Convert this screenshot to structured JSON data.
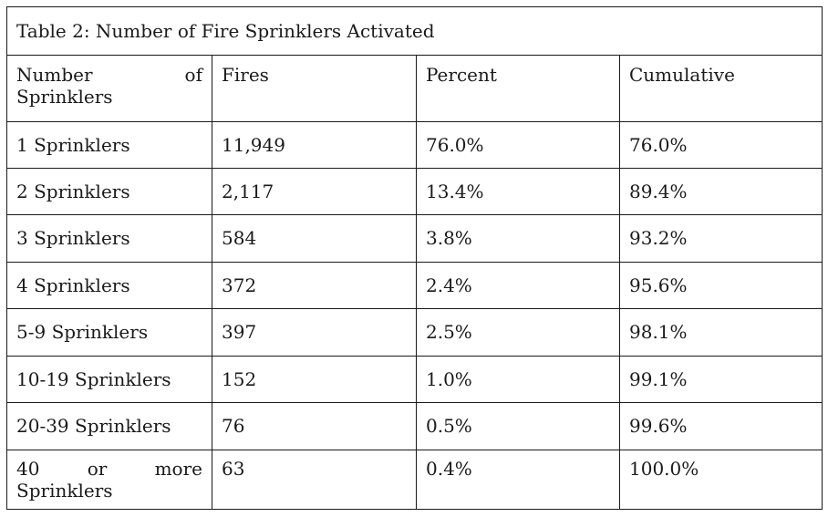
{
  "caption": "Table 2: Number of Fire Sprinklers Activated",
  "headers": {
    "col1_line1_a": "Number",
    "col1_line1_b": "of",
    "col1_line2": "Sprinklers",
    "col2": "Fires",
    "col3": "Percent",
    "col4": "Cumulative"
  },
  "rows": [
    {
      "label": "1 Sprinklers",
      "fires": "11,949",
      "percent": "76.0%",
      "cumulative": "76.0%"
    },
    {
      "label": "2 Sprinklers",
      "fires": "2,117",
      "percent": "13.4%",
      "cumulative": "89.4%"
    },
    {
      "label": "3 Sprinklers",
      "fires": "584",
      "percent": "3.8%",
      "cumulative": "93.2%"
    },
    {
      "label": "4 Sprinklers",
      "fires": "372",
      "percent": "2.4%",
      "cumulative": "95.6%"
    },
    {
      "label": "5-9 Sprinklers",
      "fires": "397",
      "percent": "2.5%",
      "cumulative": "98.1%"
    },
    {
      "label": "10-19 Sprinklers",
      "fires": "152",
      "percent": "1.0%",
      "cumulative": "99.1%"
    },
    {
      "label": "20-39 Sprinklers",
      "fires": "76",
      "percent": "0.5%",
      "cumulative": "99.6%"
    }
  ],
  "last_row": {
    "label_a": "40",
    "label_b": "or",
    "label_c": "more",
    "label_line2": "Sprinklers",
    "fires": "63",
    "percent": "0.4%",
    "cumulative": "100.0%"
  }
}
